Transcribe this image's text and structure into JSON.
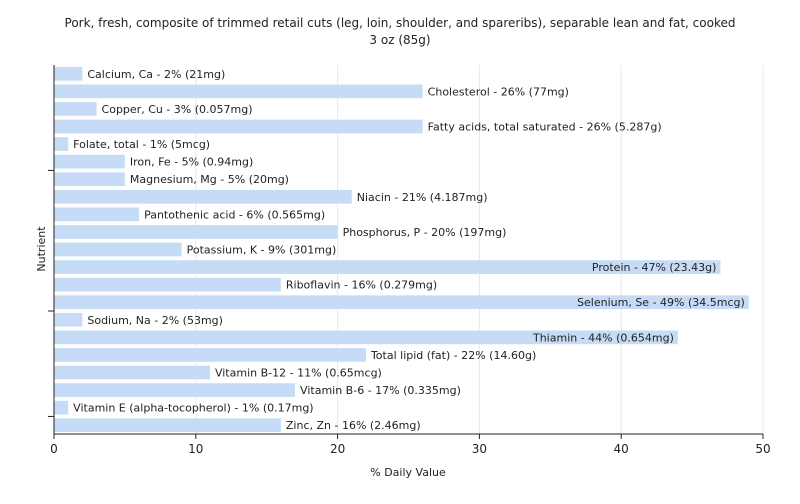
{
  "chart_data": {
    "type": "bar",
    "orientation": "horizontal",
    "title": "Pork, fresh, composite of trimmed retail cuts (leg, loin, shoulder, and spareribs), separable lean and fat, cooked 3 oz (85g)",
    "title_lines": [
      "Pork, fresh, composite of trimmed retail cuts (leg, loin, shoulder, and spareribs), separable lean and fat, cooked",
      "3 oz (85g)"
    ],
    "xlabel": "% Daily Value",
    "ylabel": "Nutrient",
    "xlim": [
      0,
      50
    ],
    "xticks": [
      0,
      10,
      20,
      30,
      40,
      50
    ],
    "grid": "vertical",
    "bar_color": "#c6dcf6",
    "categories": [
      "Calcium, Ca",
      "Cholesterol",
      "Copper, Cu",
      "Fatty acids, total saturated",
      "Folate, total",
      "Iron, Fe",
      "Magnesium, Mg",
      "Niacin",
      "Pantothenic acid",
      "Phosphorus, P",
      "Potassium, K",
      "Protein",
      "Riboflavin",
      "Selenium, Se",
      "Sodium, Na",
      "Thiamin",
      "Total lipid (fat)",
      "Vitamin B-12",
      "Vitamin B-6",
      "Vitamin E (alpha-tocopherol)",
      "Zinc, Zn"
    ],
    "values": [
      2,
      26,
      3,
      26,
      1,
      5,
      5,
      21,
      6,
      20,
      9,
      47,
      16,
      49,
      2,
      44,
      22,
      11,
      17,
      1,
      16
    ],
    "labels": [
      "Calcium, Ca - 2% (21mg)",
      "Cholesterol - 26% (77mg)",
      "Copper, Cu - 3% (0.057mg)",
      "Fatty acids, total saturated - 26% (5.287g)",
      "Folate, total - 1% (5mcg)",
      "Iron, Fe - 5% (0.94mg)",
      "Magnesium, Mg - 5% (20mg)",
      "Niacin - 21% (4.187mg)",
      "Pantothenic acid - 6% (0.565mg)",
      "Phosphorus, P - 20% (197mg)",
      "Potassium, K - 9% (301mg)",
      "Protein - 47% (23.43g)",
      "Riboflavin - 16% (0.279mg)",
      "Selenium, Se - 49% (34.5mcg)",
      "Sodium, Na - 2% (53mg)",
      "Thiamin - 44% (0.654mg)",
      "Total lipid (fat) - 22% (14.60g)",
      "Vitamin B-12 - 11% (0.65mcg)",
      "Vitamin B-6 - 17% (0.335mg)",
      "Vitamin E (alpha-tocopherol) - 1% (0.17mg)",
      "Zinc, Zn - 16% (2.46mg)"
    ]
  }
}
